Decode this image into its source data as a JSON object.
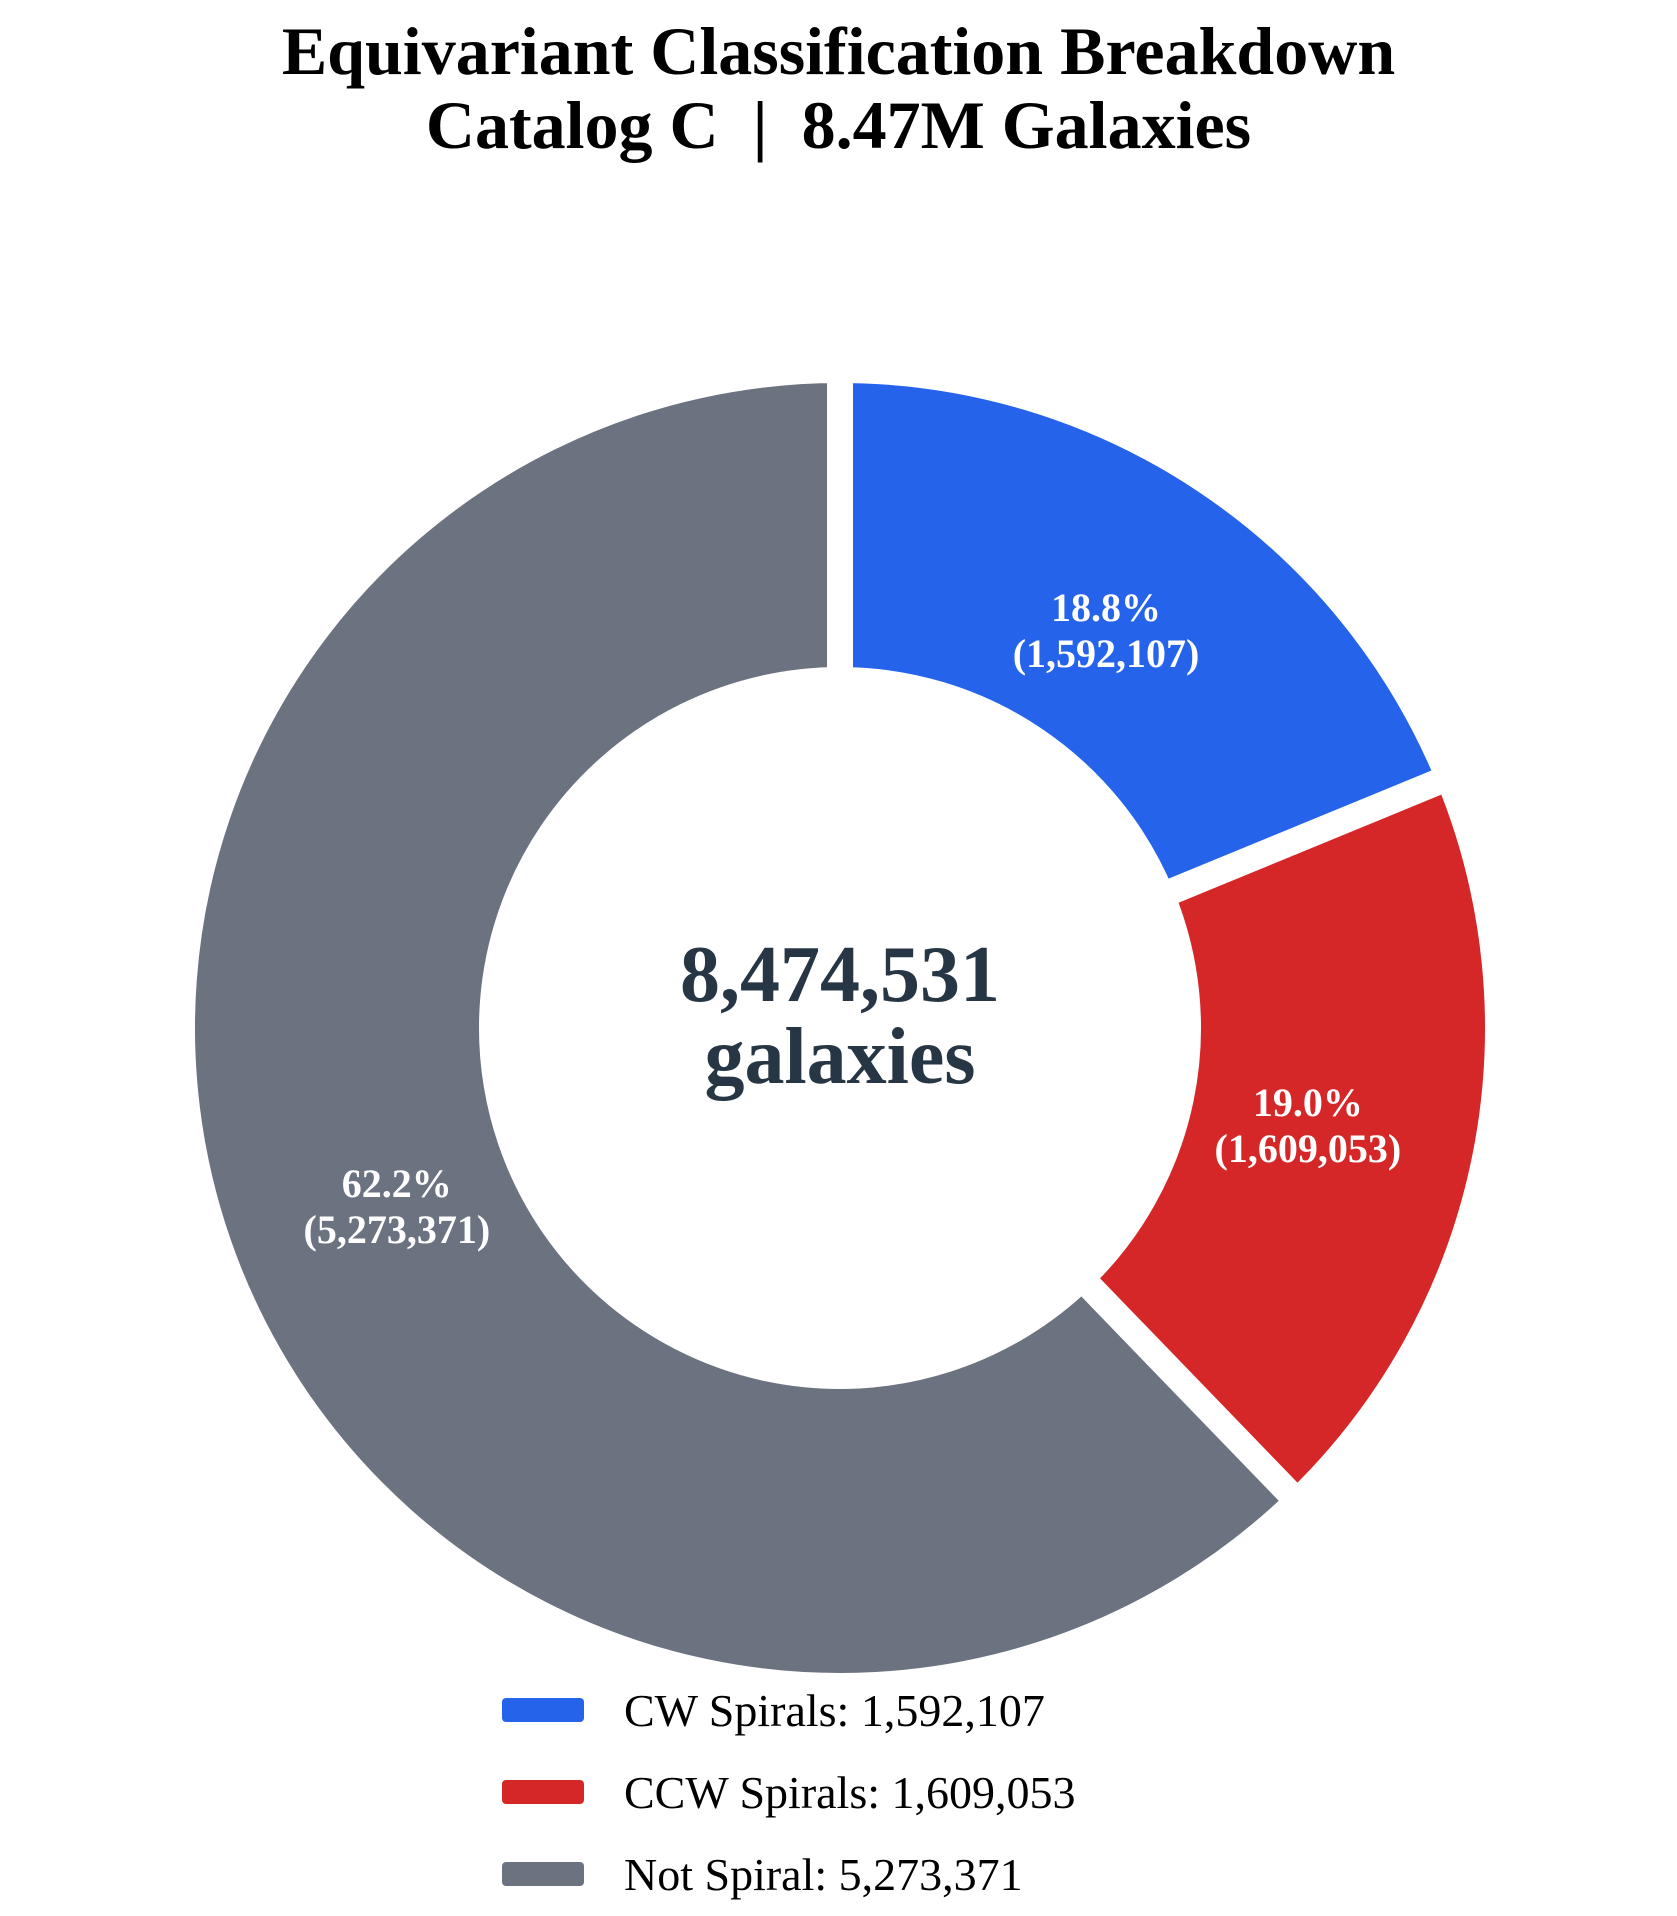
{
  "title": {
    "line1": "Equivariant Classification Breakdown",
    "line2": "Catalog C  |  8.47M Galaxies"
  },
  "center": {
    "value": "8,474,531",
    "label": "galaxies"
  },
  "slices": [
    {
      "name": "CW Spirals",
      "pct": "18.8%",
      "count": "(1,592,107)"
    },
    {
      "name": "CCW Spirals",
      "pct": "19.0%",
      "count": "(1,609,053)"
    },
    {
      "name": "Not Spiral",
      "pct": "62.2%",
      "count": "(5,273,371)"
    }
  ],
  "legend": {
    "items": [
      {
        "label": "CW Spirals: 1,592,107",
        "color": "#2563eb"
      },
      {
        "label": "CCW Spirals: 1,609,053",
        "color": "#d62728"
      },
      {
        "label": "Not Spiral: 5,273,371",
        "color": "#6b7280"
      }
    ]
  },
  "chart_data": {
    "type": "pie",
    "subtype": "donut",
    "title": "Equivariant Classification Breakdown — Catalog C | 8.47M Galaxies",
    "categories": [
      "CW Spirals",
      "CCW Spirals",
      "Not Spiral"
    ],
    "values": [
      1592107,
      1609053,
      5273371
    ],
    "percent_labels": [
      "18.8%",
      "19.0%",
      "62.2%"
    ],
    "colors": [
      "#2563eb",
      "#d62728",
      "#6b7280"
    ],
    "total": 8474531,
    "center_text": [
      "8,474,531",
      "galaxies"
    ],
    "start_angle": "12 o'clock",
    "direction": "clockwise",
    "inner_radius_ratio": 0.53,
    "gap_color": "#ffffff",
    "legend_position": "bottom",
    "label_text_color": "#ffffff",
    "center_text_color": "#273645"
  }
}
